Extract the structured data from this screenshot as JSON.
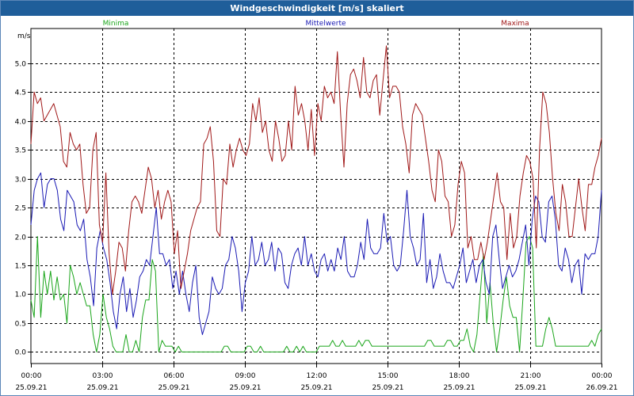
{
  "window": {
    "title": "Windgeschwindigkeit [m/s] skaliert"
  },
  "chart_data": {
    "type": "line",
    "title": "Windgeschwindigkeit [m/s] skaliert",
    "ylabel": "m/s",
    "xlabel": "",
    "ylim": [
      -0.2,
      5.6
    ],
    "xlim": [
      0,
      24
    ],
    "grid": true,
    "legend_position": "top",
    "y_ticks": [
      "0.0",
      "0.5",
      "1.0",
      "1.5",
      "2.0",
      "2.5",
      "3.0",
      "3.5",
      "4.0",
      "4.5",
      "5.0"
    ],
    "x_ticks": [
      {
        "time": "00:00",
        "date": "25.09.21"
      },
      {
        "time": "03:00",
        "date": "25.09.21"
      },
      {
        "time": "06:00",
        "date": "25.09.21"
      },
      {
        "time": "09:00",
        "date": "25.09.21"
      },
      {
        "time": "12:00",
        "date": "25.09.21"
      },
      {
        "time": "15:00",
        "date": "25.09.21"
      },
      {
        "time": "18:00",
        "date": "25.09.21"
      },
      {
        "time": "21:00",
        "date": "25.09.21"
      },
      {
        "time": "00:00",
        "date": "26.09.21"
      }
    ],
    "series": [
      {
        "name": "Minima",
        "color": "#1aa51a",
        "values": [
          0.9,
          0.6,
          2.0,
          0.6,
          1.4,
          1.0,
          1.4,
          0.9,
          1.3,
          0.9,
          1.0,
          0.5,
          1.5,
          1.3,
          1.0,
          1.2,
          1.0,
          0.8,
          0.8,
          0.3,
          0.0,
          0.3,
          1.0,
          0.6,
          0.4,
          0.1,
          0.0,
          0.0,
          0.0,
          0.3,
          0.0,
          0.0,
          0.2,
          0.0,
          0.6,
          0.9,
          0.9,
          1.6,
          1.4,
          0.0,
          0.2,
          0.1,
          0.1,
          0.1,
          0.0,
          0.1,
          0.0,
          0.0,
          0.0,
          0.0,
          0.0,
          0.0,
          0.0,
          0.0,
          0.0,
          0.0,
          0.0,
          0.0,
          0.0,
          0.1,
          0.1,
          0.0,
          0.0,
          0.0,
          0.0,
          0.0,
          0.1,
          0.1,
          0.0,
          0.0,
          0.1,
          0.0,
          0.0,
          0.0,
          0.0,
          0.0,
          0.0,
          0.0,
          0.1,
          0.0,
          0.0,
          0.1,
          0.0,
          0.1,
          0.0,
          0.0,
          0.0,
          0.0,
          0.1,
          0.1,
          0.1,
          0.1,
          0.2,
          0.1,
          0.1,
          0.2,
          0.1,
          0.1,
          0.1,
          0.1,
          0.2,
          0.1,
          0.2,
          0.2,
          0.1,
          0.1,
          0.1,
          0.1,
          0.1,
          0.1,
          0.1,
          0.1,
          0.1,
          0.1,
          0.1,
          0.1,
          0.1,
          0.1,
          0.1,
          0.1,
          0.1,
          0.2,
          0.2,
          0.1,
          0.1,
          0.1,
          0.1,
          0.2,
          0.2,
          0.1,
          0.1,
          0.2,
          0.2,
          0.4,
          0.1,
          0.0,
          0.3,
          1.0,
          1.7,
          0.5,
          1.2,
          0.5,
          0.0,
          0.4,
          0.9,
          1.3,
          0.8,
          0.6,
          0.6,
          0.0,
          0.9,
          1.9,
          2.0,
          1.8,
          0.1,
          0.1,
          0.1,
          0.4,
          0.6,
          0.4,
          0.1,
          0.1,
          0.1,
          0.1,
          0.1,
          0.1,
          0.1,
          0.1,
          0.1,
          0.1,
          0.1,
          0.2,
          0.1,
          0.3,
          0.4
        ]
      },
      {
        "name": "Mittelwerte",
        "color": "#1a1ab4",
        "values": [
          2.2,
          2.8,
          3.0,
          3.1,
          2.5,
          2.9,
          3.0,
          3.0,
          2.8,
          2.3,
          2.1,
          2.8,
          2.7,
          2.6,
          2.2,
          2.1,
          2.3,
          1.6,
          1.3,
          0.8,
          1.8,
          2.1,
          1.8,
          1.6,
          1.2,
          0.7,
          0.4,
          1.0,
          1.3,
          0.7,
          1.1,
          0.6,
          0.9,
          1.3,
          1.4,
          1.6,
          1.5,
          2.0,
          2.5,
          1.7,
          1.7,
          1.5,
          1.6,
          1.1,
          1.4,
          1.0,
          1.4,
          1.0,
          0.7,
          1.2,
          1.5,
          0.6,
          0.3,
          0.5,
          0.7,
          1.3,
          1.1,
          1.0,
          1.1,
          1.5,
          1.6,
          2.0,
          1.8,
          1.4,
          0.7,
          1.2,
          1.4,
          2.0,
          1.5,
          1.6,
          1.9,
          1.5,
          1.6,
          1.9,
          1.4,
          1.8,
          1.7,
          1.2,
          1.1,
          1.5,
          1.7,
          1.8,
          1.5,
          2.0,
          1.5,
          1.7,
          1.4,
          1.3,
          1.6,
          1.7,
          1.4,
          1.6,
          1.4,
          1.8,
          1.6,
          2.0,
          1.4,
          1.3,
          1.3,
          1.5,
          1.9,
          1.6,
          2.3,
          1.8,
          1.7,
          1.7,
          1.8,
          2.4,
          1.9,
          2.0,
          1.5,
          1.4,
          1.5,
          2.1,
          2.8,
          2.0,
          1.8,
          1.5,
          1.6,
          2.4,
          1.2,
          1.6,
          1.1,
          1.3,
          1.7,
          1.4,
          1.2,
          1.2,
          1.1,
          1.3,
          1.5,
          1.8,
          1.2,
          1.4,
          1.6,
          1.2,
          1.5,
          1.6,
          1.2,
          1.0,
          2.0,
          2.2,
          1.6,
          1.1,
          1.3,
          1.5,
          1.3,
          1.4,
          1.6,
          1.9,
          2.2,
          1.5,
          2.3,
          2.7,
          2.6,
          2.0,
          1.9,
          2.6,
          2.7,
          2.3,
          1.5,
          1.4,
          1.8,
          1.6,
          1.2,
          1.5,
          1.6,
          1.0,
          1.7,
          1.6,
          1.7,
          1.7,
          2.0,
          2.8
        ]
      },
      {
        "name": "Maxima",
        "color": "#a01818",
        "values": [
          3.6,
          4.5,
          4.3,
          4.4,
          4.0,
          4.1,
          4.2,
          4.3,
          4.1,
          3.9,
          3.3,
          3.2,
          3.8,
          3.6,
          3.5,
          3.6,
          2.9,
          2.4,
          2.5,
          3.5,
          3.8,
          2.2,
          1.9,
          3.1,
          1.7,
          1.0,
          1.4,
          1.9,
          1.8,
          1.4,
          2.1,
          2.6,
          2.7,
          2.6,
          2.4,
          2.8,
          3.2,
          3.0,
          2.5,
          2.8,
          2.3,
          2.6,
          2.8,
          2.6,
          1.7,
          2.1,
          1.1,
          1.4,
          1.7,
          2.1,
          2.3,
          2.5,
          2.6,
          3.6,
          3.7,
          3.9,
          3.3,
          2.1,
          2.0,
          3.0,
          2.9,
          3.6,
          3.2,
          3.5,
          3.7,
          3.5,
          3.4,
          3.6,
          4.3,
          4.0,
          4.4,
          3.8,
          4.0,
          3.5,
          3.3,
          4.0,
          3.7,
          3.3,
          3.4,
          4.0,
          3.5,
          4.6,
          4.1,
          4.3,
          4.0,
          3.5,
          4.2,
          3.4,
          4.3,
          4.0,
          4.6,
          4.4,
          4.5,
          4.3,
          5.2,
          4.1,
          3.2,
          4.3,
          4.8,
          4.9,
          4.7,
          4.4,
          5.1,
          4.5,
          4.4,
          4.7,
          4.8,
          4.1,
          4.7,
          5.3,
          4.4,
          4.6,
          4.6,
          4.5,
          3.9,
          3.6,
          3.1,
          4.1,
          4.3,
          4.2,
          4.1,
          3.7,
          3.3,
          2.8,
          2.6,
          3.5,
          3.3,
          2.7,
          2.6,
          2.0,
          2.2,
          2.9,
          3.3,
          3.1,
          1.8,
          2.0,
          1.6,
          1.6,
          1.9,
          1.6,
          1.9,
          2.3,
          2.7,
          3.1,
          2.6,
          2.5,
          1.6,
          2.4,
          1.8,
          2.0,
          2.7,
          3.1,
          3.4,
          3.3,
          3.0,
          1.8,
          3.5,
          4.5,
          4.3,
          3.8,
          3.0,
          2.4,
          2.1,
          2.9,
          2.6,
          2.0,
          2.0,
          2.5,
          3.0,
          2.5,
          2.1,
          2.9,
          2.9,
          3.2,
          3.4,
          3.7
        ]
      }
    ]
  }
}
